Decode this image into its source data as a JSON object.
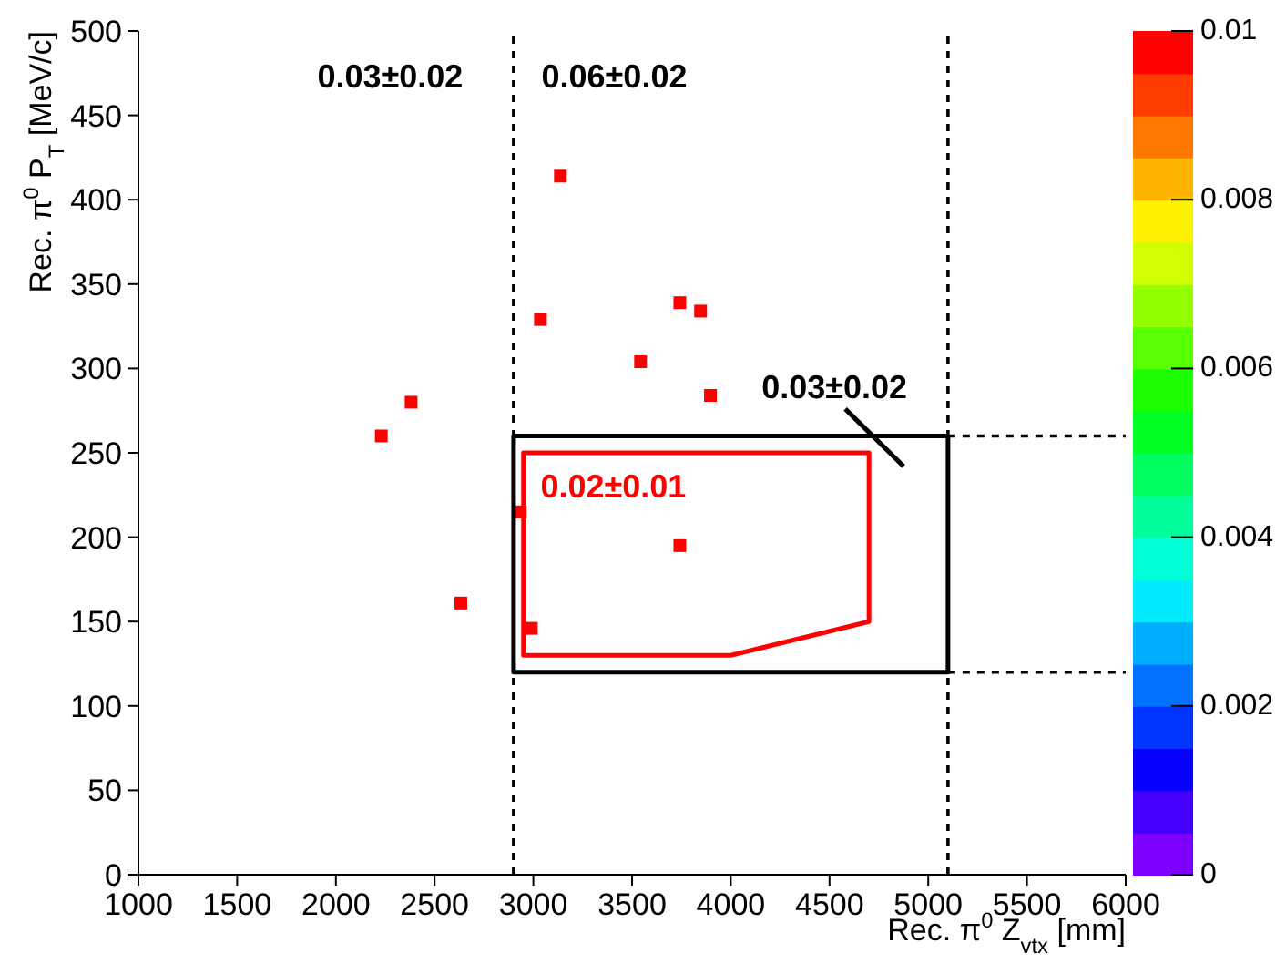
{
  "chart_data": {
    "type": "scatter",
    "xlabel": "Rec. π$^{0}$ Z$_{vtx}$ [mm]",
    "ylabel": "Rec. π$^{0}$ P$_{T}$ [MeV/c]",
    "xlim": [
      1000,
      6000
    ],
    "ylim": [
      0,
      500
    ],
    "xticks": [
      1000,
      1500,
      2000,
      2500,
      3000,
      3500,
      4000,
      4500,
      5000,
      5500,
      6000
    ],
    "yticks": [
      0,
      50,
      100,
      150,
      200,
      250,
      300,
      350,
      400,
      450,
      500
    ],
    "clim": [
      0,
      0.01
    ],
    "cticks": [
      0,
      0.002,
      0.004,
      0.006,
      0.008,
      0.01
    ],
    "series": [
      {
        "marker": "square",
        "x": [
          2230,
          2381,
          2633,
          2934,
          2990,
          3036,
          3137,
          3543,
          3742,
          3847,
          3897,
          3742
        ],
        "values": [
          260,
          280,
          161,
          215,
          146,
          329,
          414,
          304,
          339,
          334,
          284,
          195
        ],
        "cvalues": [
          0.01,
          0.01,
          0.01,
          0.01,
          0.01,
          0.01,
          0.01,
          0.01,
          0.01,
          0.01,
          0.01,
          0.01
        ]
      },
      {
        "type": "line",
        "color": "#000000",
        "line_style": "dashed",
        "x": [
          5100,
          6000
        ],
        "values": [
          260,
          260
        ]
      },
      {
        "type": "line",
        "color": "#000000",
        "line_style": "dashed",
        "x": [
          5100,
          6000
        ],
        "values": [
          120,
          120
        ]
      },
      {
        "type": "line",
        "color": "#000000",
        "x": [
          4580,
          4875
        ],
        "values": [
          276,
          242
        ]
      }
    ],
    "ref_lines": [
      {
        "axis": "x",
        "value": 2900,
        "line_style": "dashed",
        "color": "#000000"
      },
      {
        "axis": "x",
        "value": 5100,
        "line_style": "dashed",
        "color": "#000000"
      }
    ],
    "annotations": [
      "0.03±0.02",
      "0.06±0.02",
      "0.03±0.02",
      "0.02±0.01"
    ]
  }
}
